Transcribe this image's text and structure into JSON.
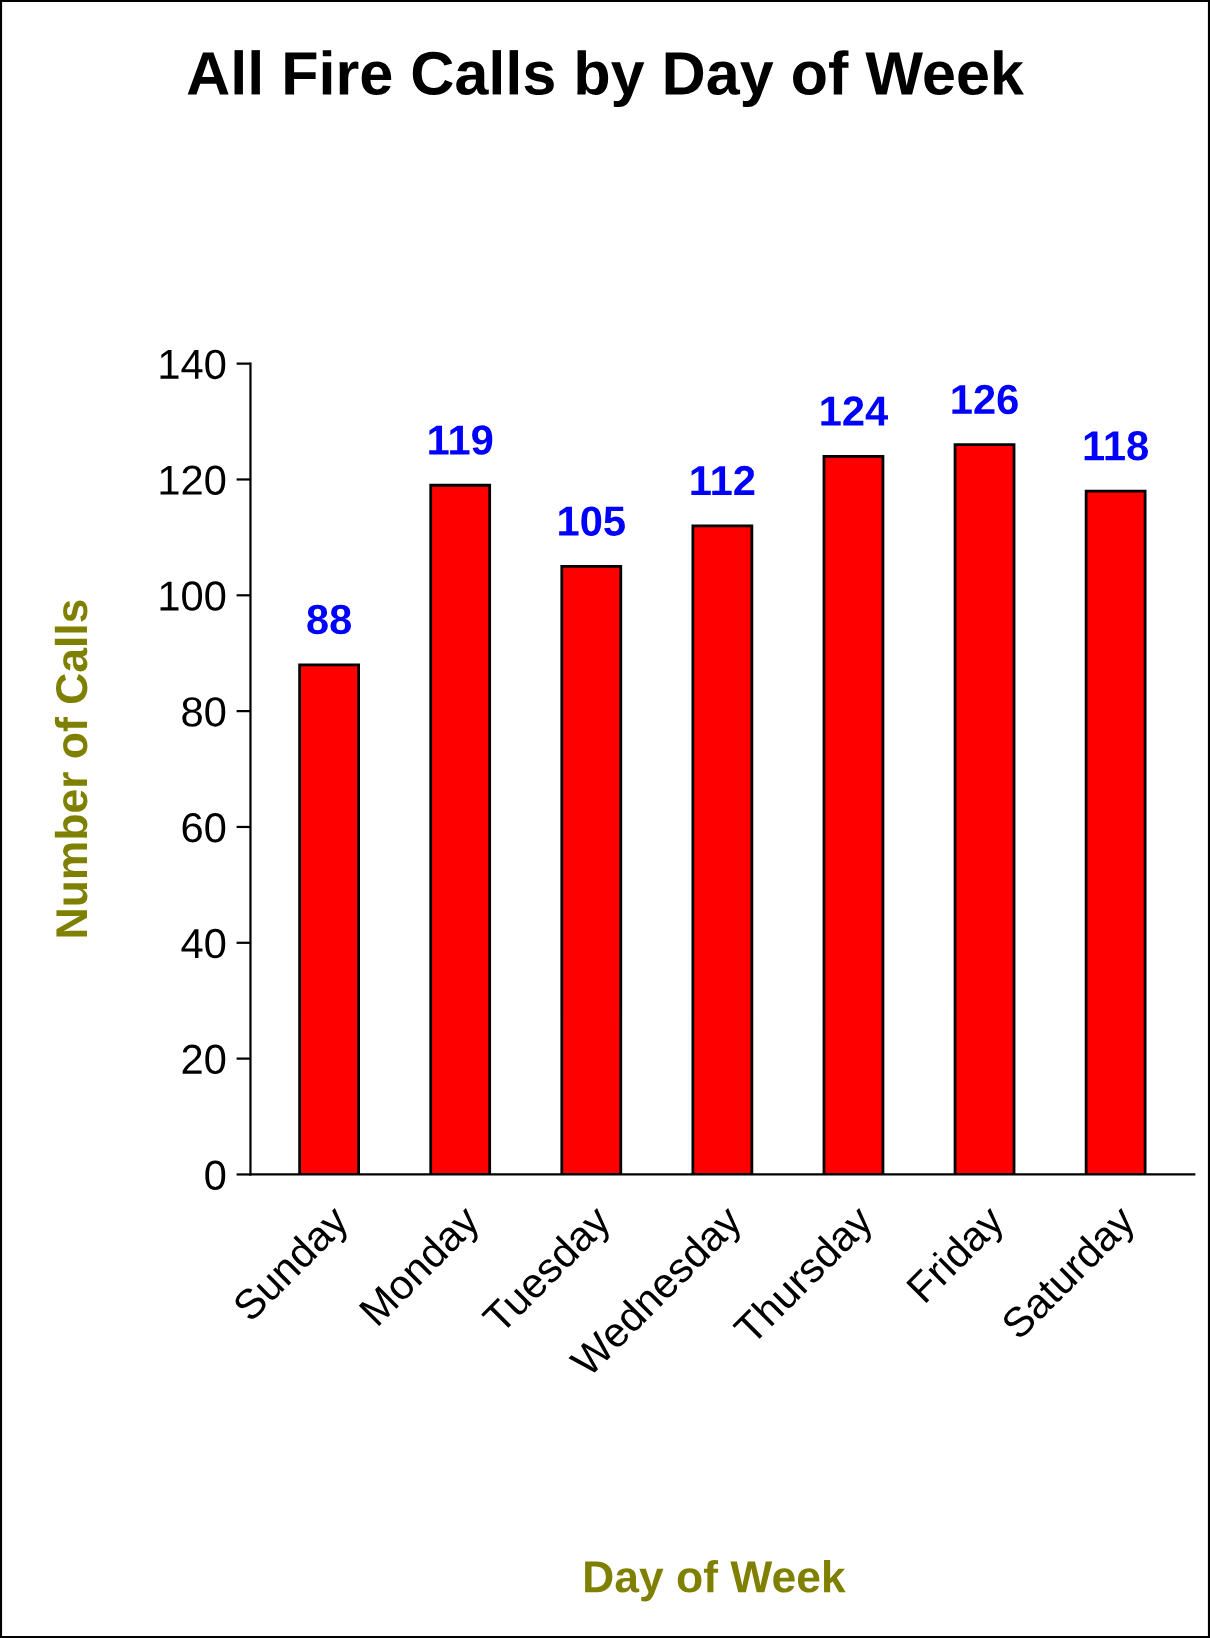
{
  "chart_data": {
    "type": "bar",
    "title": "All Fire Calls by Day of Week",
    "xlabel": "Day of Week",
    "ylabel": "Number of Calls",
    "categories": [
      "Sunday",
      "Monday",
      "Tuesday",
      "Wednesday",
      "Thursday",
      "Friday",
      "Saturday"
    ],
    "values": [
      88,
      119,
      105,
      112,
      124,
      126,
      118
    ],
    "color": "#ff0000",
    "ylim": [
      0,
      140
    ],
    "yticks": [
      0,
      20,
      40,
      60,
      80,
      100,
      120,
      140
    ],
    "grid": false,
    "data_labels": true
  }
}
